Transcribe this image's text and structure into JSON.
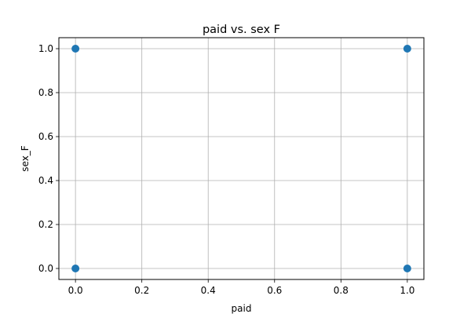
{
  "chart_data": {
    "type": "scatter",
    "title": "paid vs. sex F",
    "xlabel": "paid",
    "ylabel": "sex_F",
    "xlim": [
      -0.05,
      1.05
    ],
    "ylim": [
      -0.05,
      1.05
    ],
    "xticks": [
      0.0,
      0.2,
      0.4,
      0.6,
      0.8,
      1.0
    ],
    "yticks": [
      0.0,
      0.2,
      0.4,
      0.6,
      0.8,
      1.0
    ],
    "xtick_labels": [
      "0.0",
      "0.2",
      "0.4",
      "0.6",
      "0.8",
      "1.0"
    ],
    "ytick_labels": [
      "0.0",
      "0.2",
      "0.4",
      "0.6",
      "0.8",
      "1.0"
    ],
    "grid": true,
    "marker_color": "#1f77b4",
    "grid_color": "#b0b0b0",
    "points": [
      {
        "x": 0,
        "y": 1
      },
      {
        "x": 1,
        "y": 1
      },
      {
        "x": 0,
        "y": 0
      },
      {
        "x": 1,
        "y": 0
      }
    ]
  }
}
